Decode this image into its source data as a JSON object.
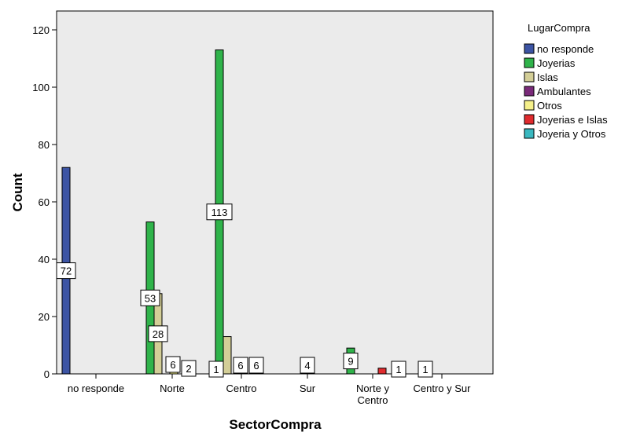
{
  "chart_data": {
    "type": "bar",
    "title": "",
    "xlabel": "SectorCompra",
    "ylabel": "Count",
    "ylim": [
      0,
      120
    ],
    "yticks": [
      0,
      20,
      40,
      60,
      80,
      100,
      120
    ],
    "grid": false,
    "legend_title": "LugarCompra",
    "legend_position": "right",
    "categories": [
      [
        "no responde"
      ],
      [
        "Norte"
      ],
      [
        "Centro"
      ],
      [
        "Sur"
      ],
      [
        "Norte y",
        "Centro"
      ],
      [
        "Centro y Sur"
      ]
    ],
    "series": [
      {
        "name": "no responde",
        "color": "#3c54a4",
        "values": [
          72,
          0,
          0,
          0,
          0,
          0
        ],
        "labels": [
          "72",
          null,
          null,
          null,
          null,
          null
        ]
      },
      {
        "name": "Joyerias",
        "color": "#2fb34a",
        "values": [
          0,
          53,
          113,
          0,
          9,
          0
        ],
        "labels": [
          null,
          "53",
          "113",
          null,
          "9",
          null
        ]
      },
      {
        "name": "Islas",
        "color": "#d3ce97",
        "values": [
          0,
          28,
          13,
          0,
          0,
          0
        ],
        "labels": [
          null,
          "28",
          null,
          null,
          null,
          null
        ]
      },
      {
        "name": "Ambulantes",
        "color": "#7a2a7a",
        "values": [
          0,
          0,
          0,
          0,
          0,
          0
        ],
        "labels": [
          null,
          null,
          null,
          null,
          null,
          null
        ]
      },
      {
        "name": "Otros",
        "color": "#f5f08a",
        "values": [
          0,
          4,
          2,
          0,
          0,
          0
        ],
        "labels": [
          null,
          null,
          null,
          null,
          null,
          null
        ]
      },
      {
        "name": "Joyerias e Islas",
        "color": "#e02b2e",
        "values": [
          0,
          0,
          0,
          0,
          2,
          0
        ],
        "labels": [
          null,
          null,
          null,
          null,
          null,
          null
        ]
      },
      {
        "name": "Joyeria y Otros",
        "color": "#3ab8c0",
        "values": [
          0,
          0,
          0,
          0,
          0,
          0
        ],
        "labels": [
          null,
          null,
          null,
          null,
          null,
          null
        ]
      }
    ],
    "extra_labels": [
      {
        "category": 1,
        "text": "6"
      },
      {
        "category": 1,
        "text": "2"
      },
      {
        "category": 2,
        "text": "1"
      },
      {
        "category": 2,
        "text": "6"
      },
      {
        "category": 2,
        "text": "6"
      },
      {
        "category": 3,
        "text": "4"
      },
      {
        "category": 4,
        "text": "1"
      },
      {
        "category": 5,
        "text": "1"
      }
    ],
    "plot_background": "#ebebeb"
  }
}
